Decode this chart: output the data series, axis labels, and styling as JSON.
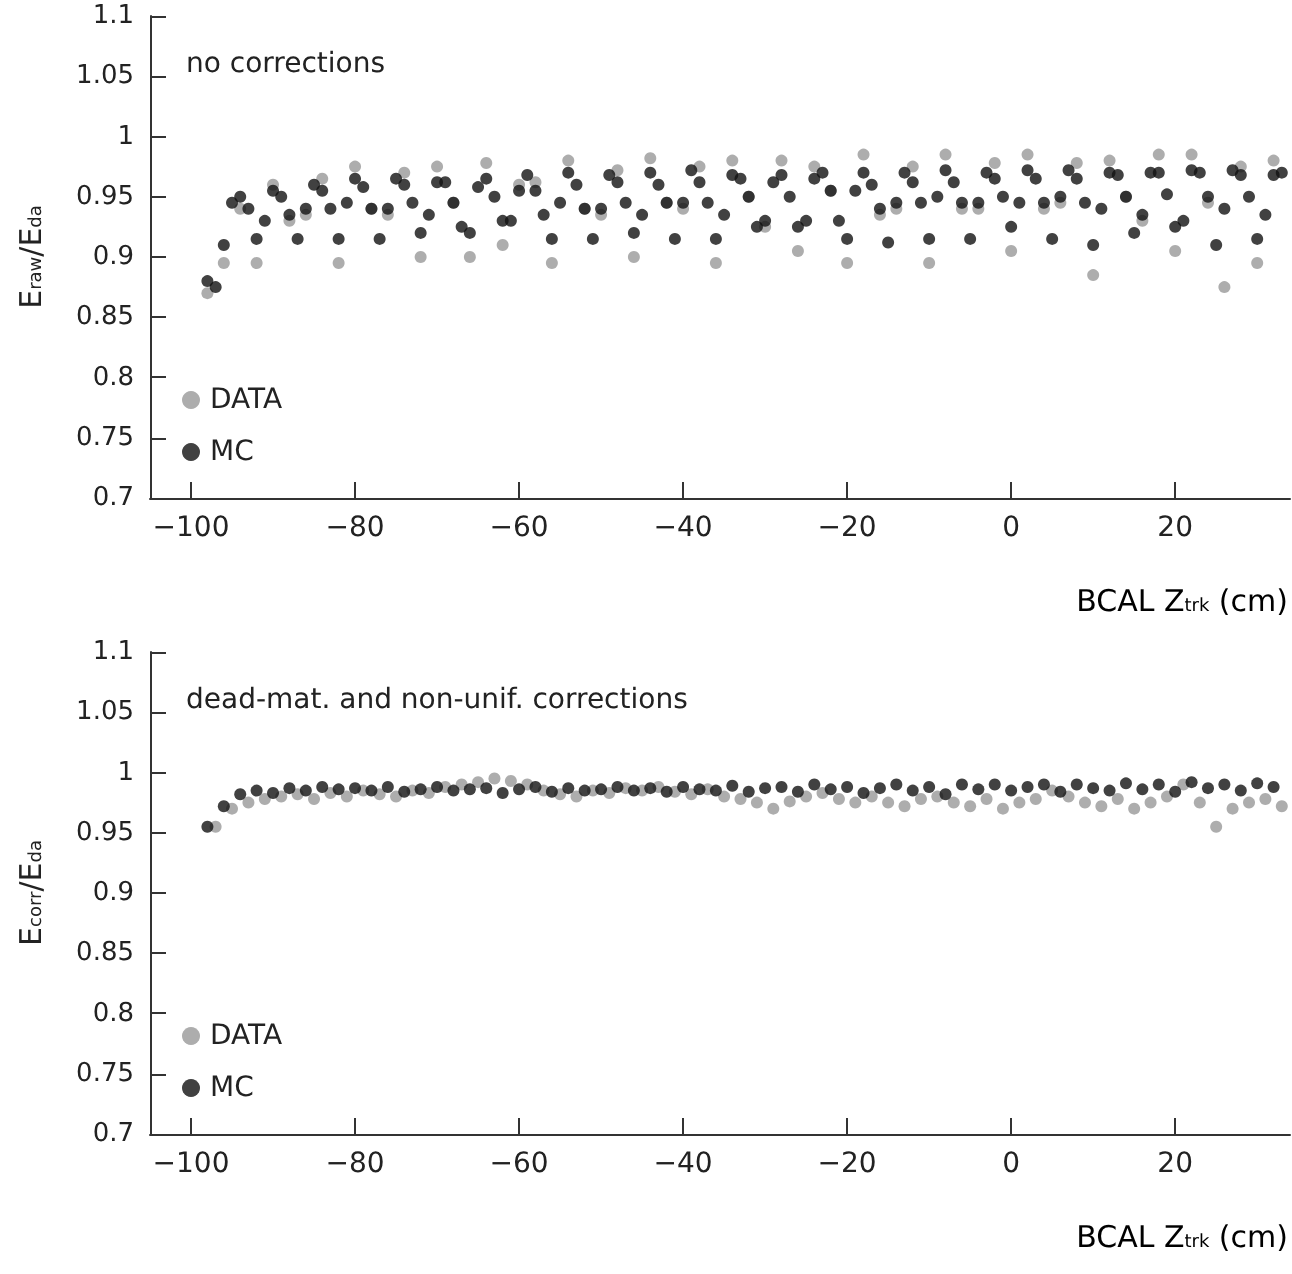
{
  "chart_data": [
    {
      "type": "scatter",
      "title": "no corrections",
      "xlabel": "BCAL Z$_{trk}$ (cm)",
      "ylabel": "E$_{raw}$/E$_{da}$",
      "xlim": [
        -105,
        34
      ],
      "xticks": [
        -100,
        -80,
        -60,
        -40,
        -20,
        0,
        20
      ],
      "ylim": [
        0.7,
        1.1
      ],
      "yticks": [
        0.7,
        0.75,
        0.8,
        0.85,
        0.9,
        0.95,
        1,
        1.05,
        1.1
      ],
      "grid": false,
      "legend": "bottom left",
      "marker": "circle",
      "series": [
        {
          "name": "DATA",
          "color": "#999999",
          "x": [
            -98,
            -96,
            -94,
            -92,
            -90,
            -88,
            -86,
            -84,
            -82,
            -80,
            -78,
            -76,
            -74,
            -72,
            -70,
            -68,
            -66,
            -64,
            -62,
            -60,
            -58,
            -56,
            -54,
            -52,
            -50,
            -48,
            -46,
            -44,
            -42,
            -40,
            -38,
            -36,
            -34,
            -32,
            -30,
            -28,
            -26,
            -24,
            -22,
            -20,
            -18,
            -16,
            -14,
            -12,
            -10,
            -8,
            -6,
            -4,
            -2,
            0,
            2,
            4,
            6,
            8,
            10,
            12,
            14,
            16,
            18,
            20,
            22,
            24,
            26,
            28,
            30,
            32
          ],
          "values": [
            0.87,
            0.895,
            0.94,
            0.895,
            0.96,
            0.93,
            0.935,
            0.965,
            0.895,
            0.975,
            0.94,
            0.935,
            0.97,
            0.9,
            0.975,
            0.945,
            0.9,
            0.978,
            0.91,
            0.96,
            0.962,
            0.895,
            0.98,
            0.94,
            0.935,
            0.972,
            0.9,
            0.982,
            0.945,
            0.94,
            0.975,
            0.895,
            0.98,
            0.95,
            0.925,
            0.98,
            0.905,
            0.975,
            0.955,
            0.895,
            0.985,
            0.935,
            0.94,
            0.975,
            0.895,
            0.985,
            0.94,
            0.94,
            0.978,
            0.905,
            0.985,
            0.94,
            0.945,
            0.978,
            0.885,
            0.98,
            0.95,
            0.93,
            0.985,
            0.905,
            0.985,
            0.945,
            0.875,
            0.975,
            0.895,
            0.98
          ]
        },
        {
          "name": "MC",
          "color": "#111111",
          "x": [
            -98,
            -97,
            -96,
            -95,
            -94,
            -93,
            -92,
            -91,
            -90,
            -89,
            -88,
            -87,
            -86,
            -85,
            -84,
            -83,
            -82,
            -81,
            -80,
            -79,
            -78,
            -77,
            -76,
            -75,
            -74,
            -73,
            -72,
            -71,
            -70,
            -69,
            -68,
            -67,
            -66,
            -65,
            -64,
            -63,
            -62,
            -61,
            -60,
            -59,
            -58,
            -57,
            -56,
            -55,
            -54,
            -53,
            -52,
            -51,
            -50,
            -49,
            -48,
            -47,
            -46,
            -45,
            -44,
            -43,
            -42,
            -41,
            -40,
            -39,
            -38,
            -37,
            -36,
            -35,
            -34,
            -33,
            -32,
            -31,
            -30,
            -29,
            -28,
            -27,
            -26,
            -25,
            -24,
            -23,
            -22,
            -21,
            -20,
            -19,
            -18,
            -17,
            -16,
            -15,
            -14,
            -13,
            -12,
            -11,
            -10,
            -9,
            -8,
            -7,
            -6,
            -5,
            -4,
            -3,
            -2,
            -1,
            0,
            1,
            2,
            3,
            4,
            5,
            6,
            7,
            8,
            9,
            10,
            11,
            12,
            13,
            14,
            15,
            16,
            17,
            18,
            19,
            20,
            21,
            22,
            23,
            24,
            25,
            26,
            27,
            28,
            29,
            30,
            31,
            32,
            33
          ],
          "values": [
            0.88,
            0.875,
            0.91,
            0.945,
            0.95,
            0.94,
            0.915,
            0.93,
            0.955,
            0.95,
            0.935,
            0.915,
            0.94,
            0.96,
            0.955,
            0.94,
            0.915,
            0.945,
            0.965,
            0.958,
            0.94,
            0.915,
            0.94,
            0.965,
            0.96,
            0.945,
            0.92,
            0.935,
            0.962,
            0.962,
            0.945,
            0.925,
            0.92,
            0.958,
            0.965,
            0.95,
            0.93,
            0.93,
            0.955,
            0.968,
            0.955,
            0.935,
            0.915,
            0.945,
            0.97,
            0.96,
            0.94,
            0.915,
            0.94,
            0.968,
            0.962,
            0.945,
            0.92,
            0.935,
            0.97,
            0.96,
            0.945,
            0.915,
            0.945,
            0.972,
            0.962,
            0.945,
            0.915,
            0.935,
            0.968,
            0.965,
            0.95,
            0.925,
            0.93,
            0.962,
            0.968,
            0.95,
            0.925,
            0.93,
            0.965,
            0.97,
            0.955,
            0.93,
            0.915,
            0.955,
            0.97,
            0.96,
            0.94,
            0.912,
            0.945,
            0.97,
            0.962,
            0.945,
            0.915,
            0.95,
            0.972,
            0.962,
            0.945,
            0.915,
            0.945,
            0.97,
            0.965,
            0.95,
            0.925,
            0.945,
            0.972,
            0.965,
            0.945,
            0.915,
            0.95,
            0.972,
            0.965,
            0.945,
            0.91,
            0.94,
            0.97,
            0.968,
            0.95,
            0.92,
            0.935,
            0.97,
            0.97,
            0.952,
            0.925,
            0.93,
            0.972,
            0.97,
            0.95,
            0.91,
            0.94,
            0.972,
            0.968,
            0.95,
            0.915,
            0.935,
            0.968,
            0.97
          ]
        }
      ]
    },
    {
      "type": "scatter",
      "title": "dead-mat. and non-unif. corrections",
      "xlabel": "BCAL Z$_{trk}$ (cm)",
      "ylabel": "E$_{corr}$/E$_{da}$",
      "xlim": [
        -105,
        34
      ],
      "xticks": [
        -100,
        -80,
        -60,
        -40,
        -20,
        0,
        20
      ],
      "ylim": [
        0.7,
        1.1
      ],
      "yticks": [
        0.7,
        0.75,
        0.8,
        0.85,
        0.9,
        0.95,
        1,
        1.05,
        1.1
      ],
      "grid": false,
      "legend": "bottom left",
      "marker": "circle",
      "series": [
        {
          "name": "DATA",
          "color": "#999999",
          "x": [
            -97,
            -95,
            -93,
            -91,
            -89,
            -87,
            -85,
            -83,
            -81,
            -79,
            -77,
            -75,
            -73,
            -71,
            -69,
            -67,
            -65,
            -63,
            -61,
            -59,
            -57,
            -55,
            -53,
            -51,
            -49,
            -47,
            -45,
            -43,
            -41,
            -39,
            -37,
            -35,
            -33,
            -31,
            -29,
            -27,
            -25,
            -23,
            -21,
            -19,
            -17,
            -15,
            -13,
            -11,
            -9,
            -7,
            -5,
            -3,
            -1,
            1,
            3,
            5,
            7,
            9,
            11,
            13,
            15,
            17,
            19,
            21,
            23,
            25,
            27,
            29,
            31,
            33
          ],
          "values": [
            0.955,
            0.97,
            0.975,
            0.978,
            0.98,
            0.982,
            0.978,
            0.983,
            0.98,
            0.985,
            0.982,
            0.98,
            0.985,
            0.983,
            0.988,
            0.99,
            0.992,
            0.995,
            0.993,
            0.99,
            0.985,
            0.982,
            0.98,
            0.985,
            0.983,
            0.987,
            0.985,
            0.988,
            0.984,
            0.982,
            0.986,
            0.98,
            0.978,
            0.975,
            0.97,
            0.976,
            0.98,
            0.983,
            0.978,
            0.975,
            0.98,
            0.975,
            0.972,
            0.978,
            0.98,
            0.975,
            0.972,
            0.978,
            0.97,
            0.975,
            0.978,
            0.985,
            0.98,
            0.975,
            0.972,
            0.978,
            0.97,
            0.975,
            0.98,
            0.99,
            0.975,
            0.955,
            0.97,
            0.975,
            0.978,
            0.972
          ]
        },
        {
          "name": "MC",
          "color": "#111111",
          "x": [
            -98,
            -96,
            -94,
            -92,
            -90,
            -88,
            -86,
            -84,
            -82,
            -80,
            -78,
            -76,
            -74,
            -72,
            -70,
            -68,
            -66,
            -64,
            -62,
            -60,
            -58,
            -56,
            -54,
            -52,
            -50,
            -48,
            -46,
            -44,
            -42,
            -40,
            -38,
            -36,
            -34,
            -32,
            -30,
            -28,
            -26,
            -24,
            -22,
            -20,
            -18,
            -16,
            -14,
            -12,
            -10,
            -8,
            -6,
            -4,
            -2,
            0,
            2,
            4,
            6,
            8,
            10,
            12,
            14,
            16,
            18,
            20,
            22,
            24,
            26,
            28,
            30,
            32
          ],
          "values": [
            0.955,
            0.972,
            0.982,
            0.985,
            0.983,
            0.987,
            0.985,
            0.988,
            0.986,
            0.987,
            0.985,
            0.988,
            0.984,
            0.986,
            0.988,
            0.985,
            0.986,
            0.987,
            0.983,
            0.986,
            0.988,
            0.984,
            0.987,
            0.985,
            0.986,
            0.988,
            0.985,
            0.987,
            0.984,
            0.988,
            0.986,
            0.985,
            0.989,
            0.984,
            0.987,
            0.988,
            0.984,
            0.99,
            0.986,
            0.988,
            0.983,
            0.987,
            0.99,
            0.985,
            0.988,
            0.982,
            0.99,
            0.986,
            0.99,
            0.985,
            0.988,
            0.99,
            0.984,
            0.99,
            0.987,
            0.985,
            0.991,
            0.986,
            0.99,
            0.984,
            0.992,
            0.987,
            0.99,
            0.985,
            0.991,
            0.988
          ]
        }
      ]
    }
  ]
}
